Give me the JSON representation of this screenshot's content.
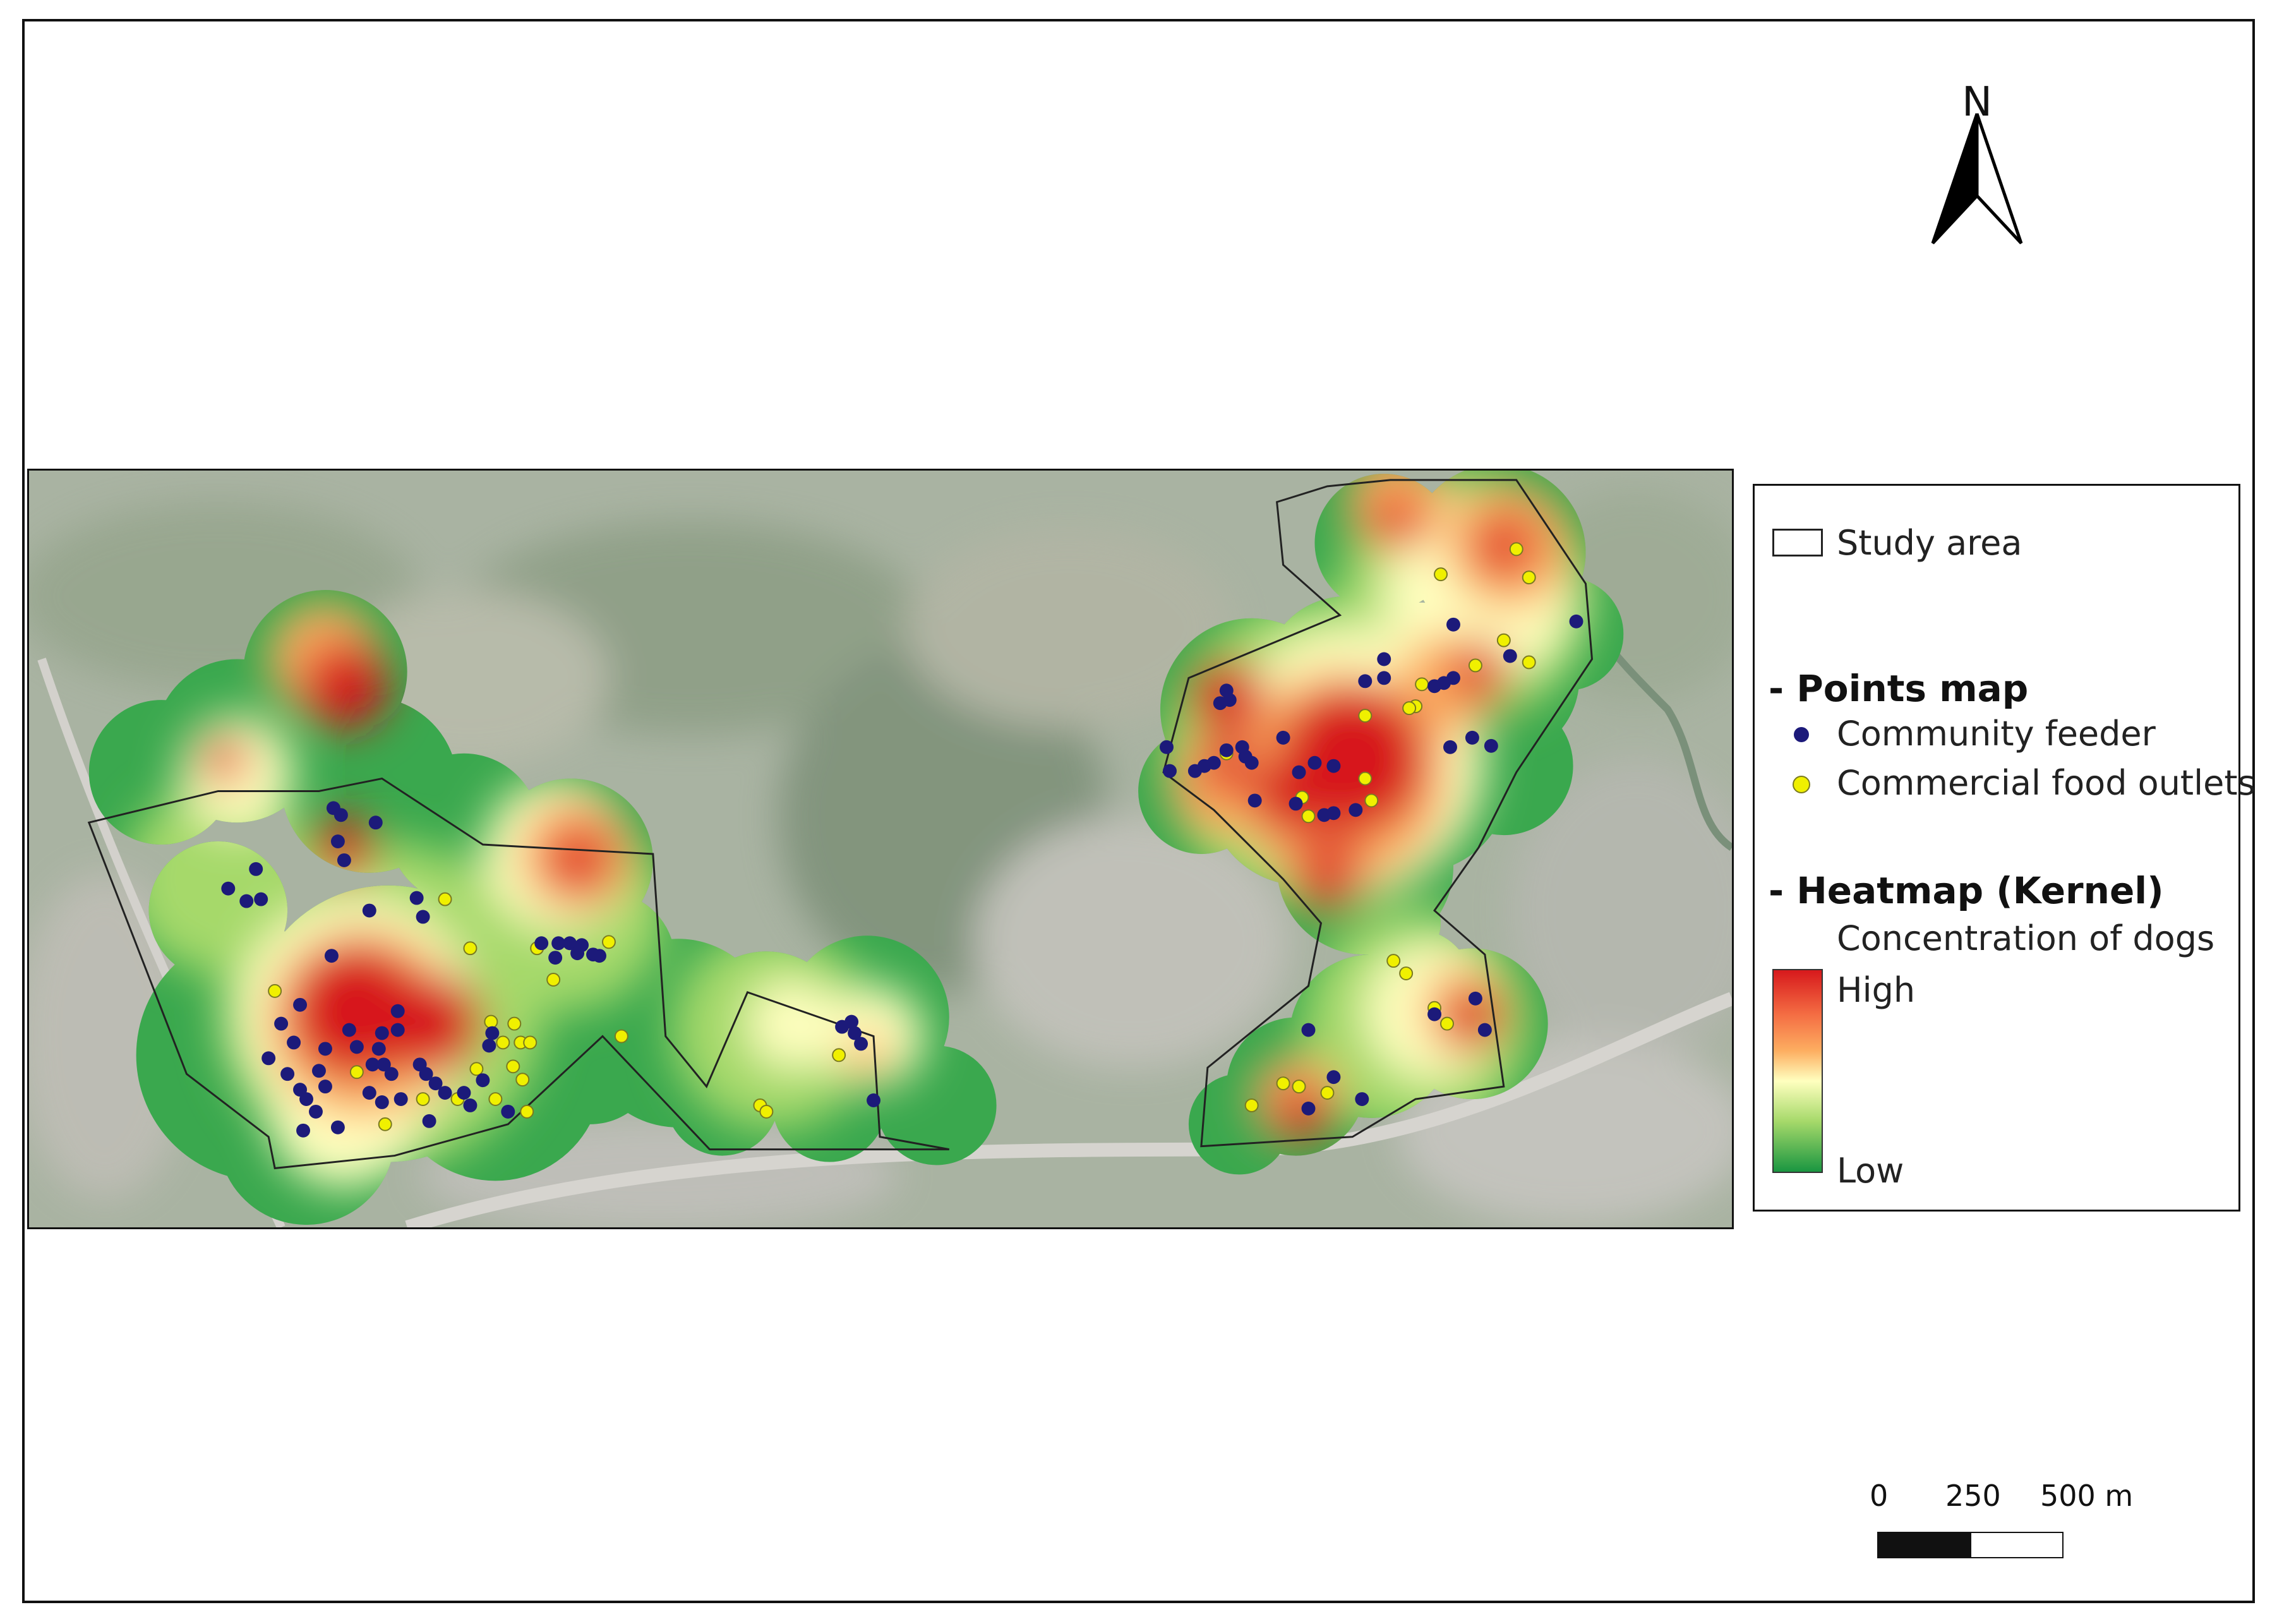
{
  "north_arrow": {
    "label": "N"
  },
  "legend": {
    "study_area": "Study area",
    "points_heading": "- Points map",
    "feeder_label": "Community feeder",
    "outlet_label": "Commercial food outlets",
    "heatmap_heading": "- Heatmap (Kernel)",
    "heatmap_subtitle": "Concentration of dogs",
    "high_label": "High",
    "low_label": "Low"
  },
  "scale_bar": {
    "tick_0": "0",
    "tick_1": "250",
    "tick_2": "500 m"
  },
  "colors": {
    "feeder": "#1c1a7a",
    "outlet": "#f0f000",
    "heat_high": "#d7191c",
    "heat_mid": "#ffffbf",
    "heat_low": "#1a9641",
    "basemap": "#a9b3a2"
  }
}
